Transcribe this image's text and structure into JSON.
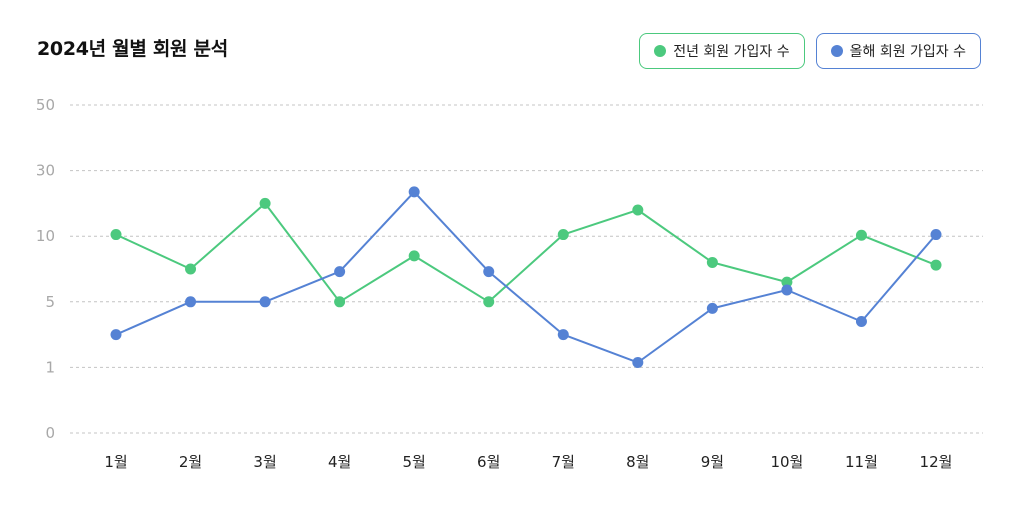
{
  "chart_data": {
    "type": "line",
    "title": "2024년 월별 회원 분석",
    "xlabel": "",
    "ylabel": "",
    "categories": [
      "1월",
      "2월",
      "3월",
      "4월",
      "5월",
      "6월",
      "7월",
      "8월",
      "9월",
      "10월",
      "11월",
      "12월"
    ],
    "yticks": [
      0,
      1,
      5,
      10,
      30,
      50
    ],
    "ylim": [
      0,
      50
    ],
    "y_scale": "categorical-ticks",
    "grid": "horizontal-dashed",
    "legend_position": "top-right",
    "series": [
      {
        "name": "전년 회원 가입자 수",
        "color": "#4cc97e",
        "values": [
          10.5,
          7.5,
          20,
          5,
          8.5,
          5,
          10.5,
          18,
          8,
          6.5,
          10.3,
          7.8
        ]
      },
      {
        "name": "올해 회원 가입자 수",
        "color": "#5582d4",
        "values": [
          3,
          5,
          5,
          7.3,
          23.5,
          7.3,
          3,
          1.3,
          4.6,
          5.9,
          3.8,
          10.5
        ]
      }
    ]
  }
}
